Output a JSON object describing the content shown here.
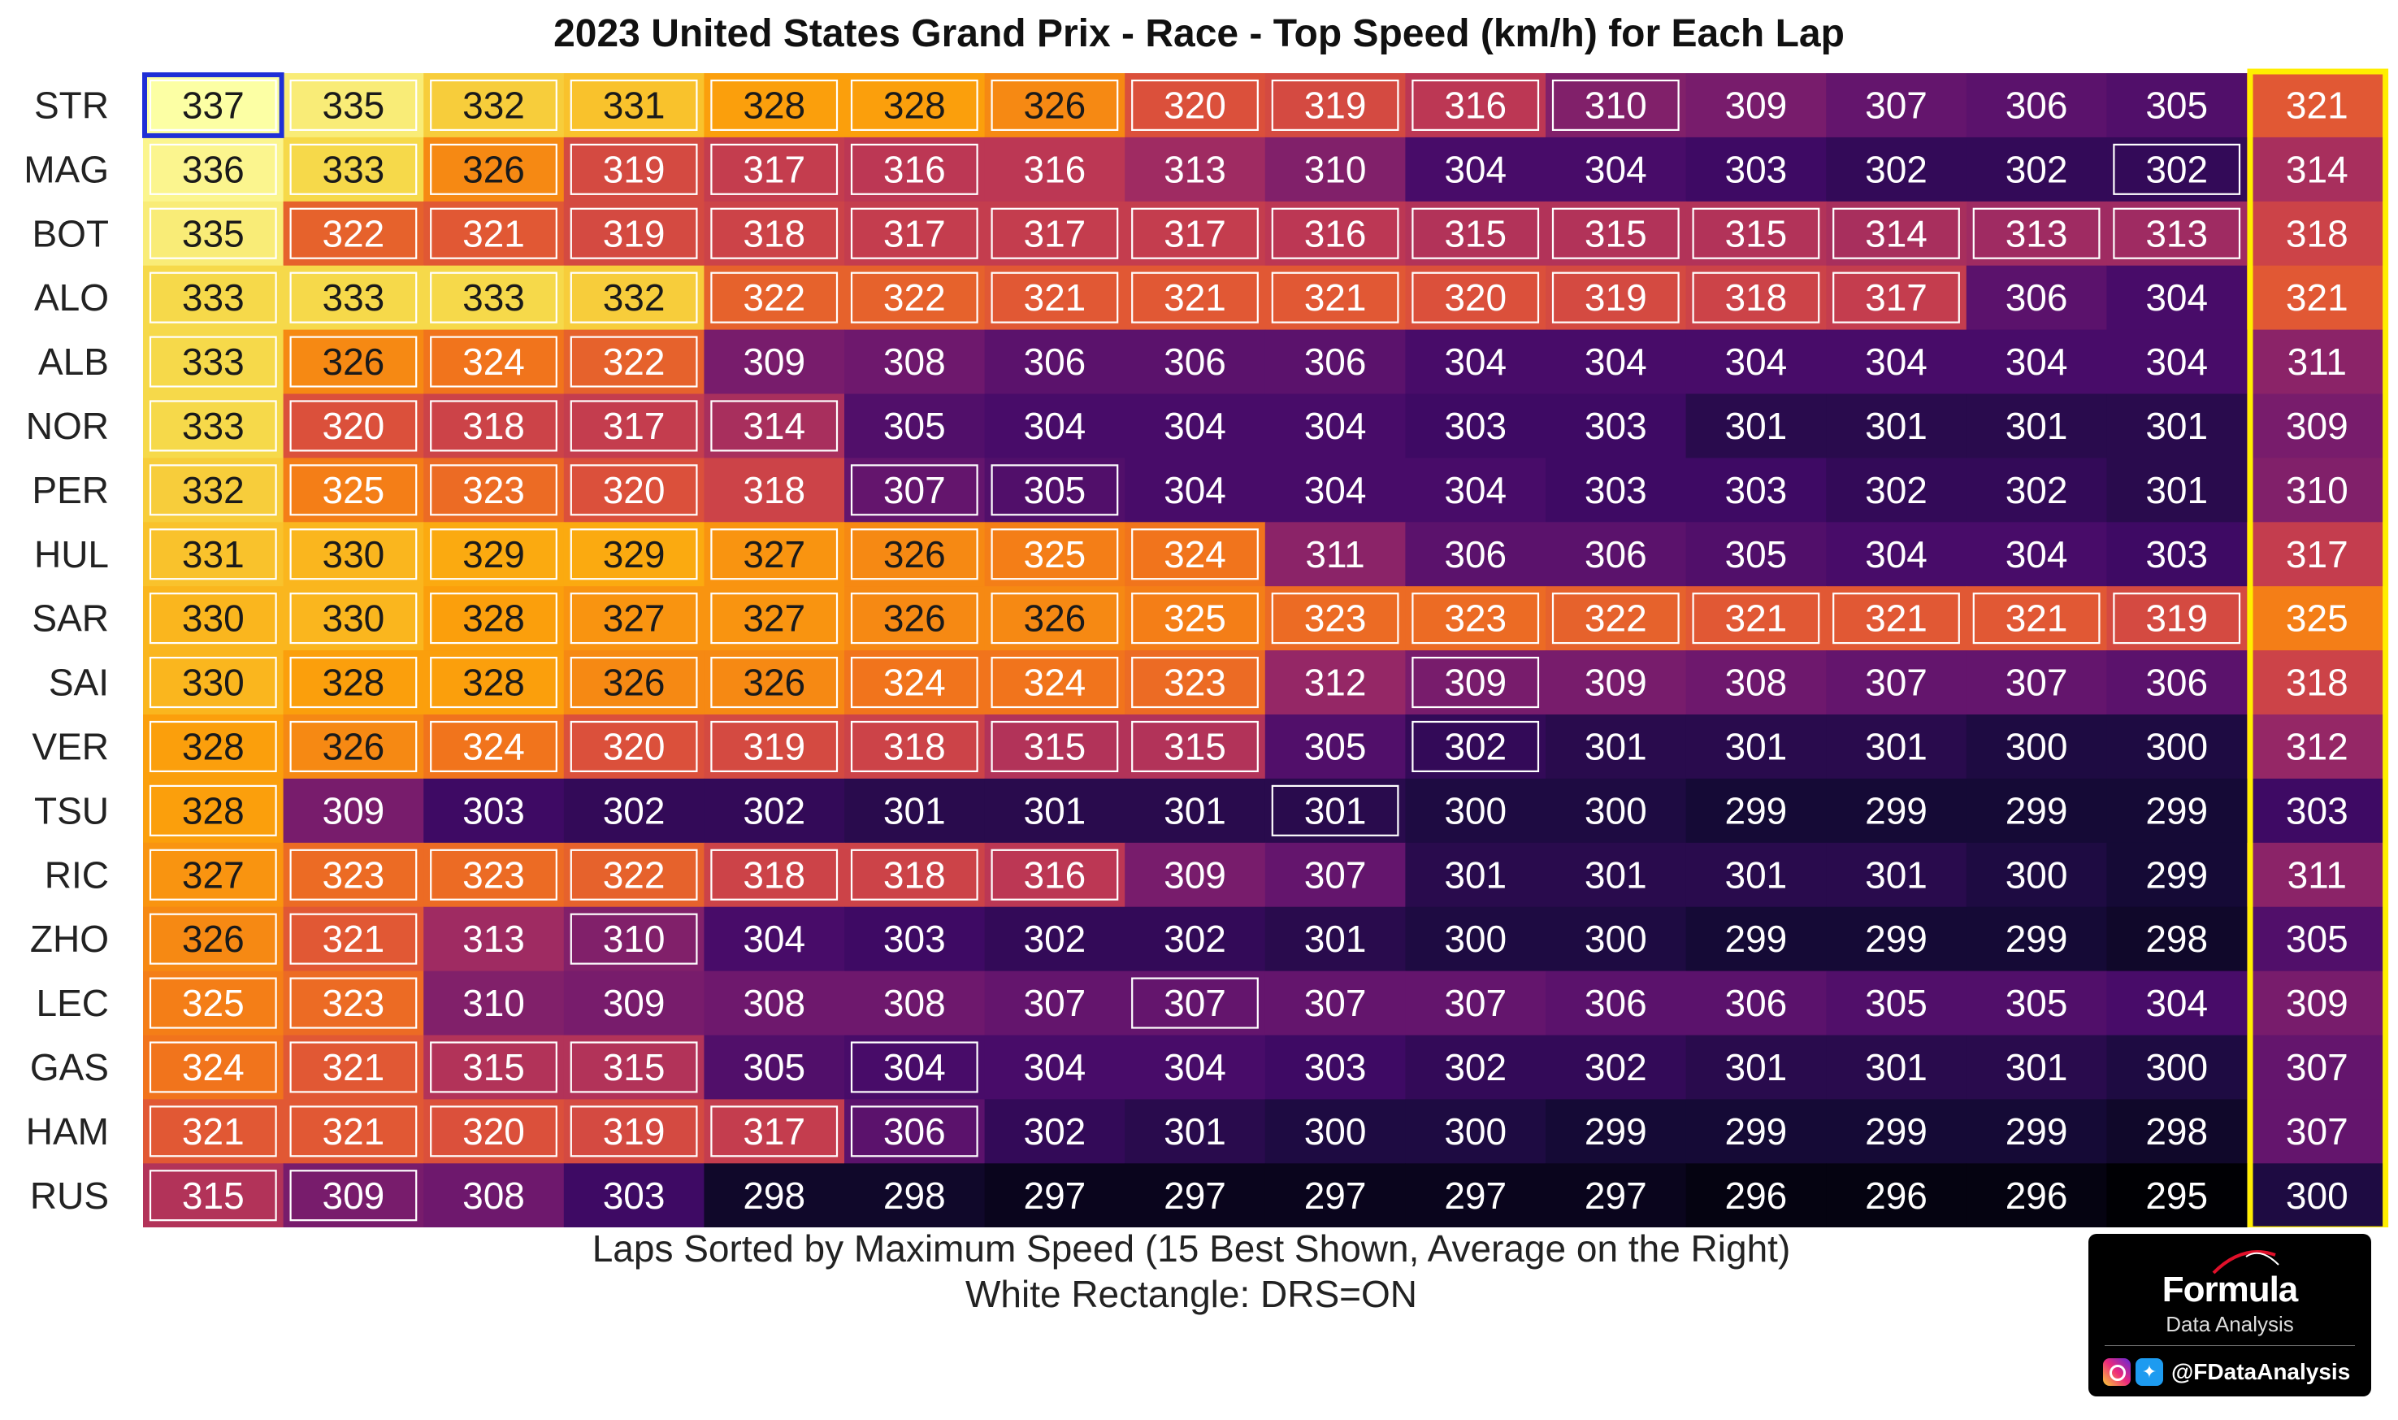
{
  "chart_data": {
    "type": "heatmap",
    "title": "2023 United States Grand Prix - Race - Top Speed (km/h) for Each Lap",
    "xlabel_lines": [
      "Laps Sorted by Maximum Speed (15 Best Shown, Average on the Right)",
      "White Rectangle: DRS=ON"
    ],
    "unit": "km/h",
    "colormap": "inferno",
    "color_range": [
      295,
      337
    ],
    "drivers": [
      "STR",
      "MAG",
      "BOT",
      "ALO",
      "ALB",
      "NOR",
      "PER",
      "HUL",
      "SAR",
      "SAI",
      "VER",
      "TSU",
      "RIC",
      "ZHO",
      "LEC",
      "GAS",
      "HAM",
      "RUS"
    ],
    "values": [
      [
        337,
        335,
        332,
        331,
        328,
        328,
        326,
        320,
        319,
        316,
        310,
        309,
        307,
        306,
        305
      ],
      [
        336,
        333,
        326,
        319,
        317,
        316,
        316,
        313,
        310,
        304,
        304,
        303,
        302,
        302,
        302
      ],
      [
        335,
        322,
        321,
        319,
        318,
        317,
        317,
        317,
        316,
        315,
        315,
        315,
        314,
        313,
        313
      ],
      [
        333,
        333,
        333,
        332,
        322,
        322,
        321,
        321,
        321,
        320,
        319,
        318,
        317,
        306,
        304
      ],
      [
        333,
        326,
        324,
        322,
        309,
        308,
        306,
        306,
        306,
        304,
        304,
        304,
        304,
        304,
        304
      ],
      [
        333,
        320,
        318,
        317,
        314,
        305,
        304,
        304,
        304,
        303,
        303,
        301,
        301,
        301,
        301
      ],
      [
        332,
        325,
        323,
        320,
        318,
        307,
        305,
        304,
        304,
        304,
        303,
        303,
        302,
        302,
        301
      ],
      [
        331,
        330,
        329,
        329,
        327,
        326,
        325,
        324,
        311,
        306,
        306,
        305,
        304,
        304,
        303
      ],
      [
        330,
        330,
        328,
        327,
        327,
        326,
        326,
        325,
        323,
        323,
        322,
        321,
        321,
        321,
        319
      ],
      [
        330,
        328,
        328,
        326,
        326,
        324,
        324,
        323,
        312,
        309,
        309,
        308,
        307,
        307,
        306
      ],
      [
        328,
        326,
        324,
        320,
        319,
        318,
        315,
        315,
        305,
        302,
        301,
        301,
        301,
        300,
        300
      ],
      [
        328,
        309,
        303,
        302,
        302,
        301,
        301,
        301,
        301,
        300,
        300,
        299,
        299,
        299,
        299
      ],
      [
        327,
        323,
        323,
        322,
        318,
        318,
        316,
        309,
        307,
        301,
        301,
        301,
        301,
        300,
        299
      ],
      [
        326,
        321,
        313,
        310,
        304,
        303,
        302,
        302,
        301,
        300,
        300,
        299,
        299,
        299,
        298
      ],
      [
        325,
        323,
        310,
        309,
        308,
        308,
        307,
        307,
        307,
        307,
        306,
        306,
        305,
        305,
        304
      ],
      [
        324,
        321,
        315,
        315,
        305,
        304,
        304,
        304,
        303,
        302,
        302,
        301,
        301,
        301,
        300
      ],
      [
        321,
        321,
        320,
        319,
        317,
        306,
        302,
        301,
        300,
        300,
        299,
        299,
        299,
        299,
        298
      ],
      [
        315,
        309,
        308,
        303,
        298,
        298,
        297,
        297,
        297,
        297,
        297,
        296,
        296,
        296,
        295
      ]
    ],
    "averages": [
      321,
      314,
      318,
      321,
      311,
      309,
      310,
      317,
      325,
      318,
      312,
      303,
      311,
      305,
      309,
      307,
      307,
      300
    ],
    "drs_on": [
      [
        1,
        1,
        1,
        1,
        1,
        1,
        1,
        1,
        1,
        1,
        1,
        0,
        0,
        0,
        0
      ],
      [
        1,
        1,
        1,
        1,
        1,
        1,
        0,
        0,
        0,
        0,
        0,
        0,
        0,
        0,
        1
      ],
      [
        1,
        1,
        1,
        1,
        1,
        1,
        1,
        1,
        1,
        1,
        1,
        1,
        1,
        1,
        1
      ],
      [
        1,
        1,
        1,
        1,
        1,
        1,
        1,
        1,
        1,
        1,
        1,
        1,
        1,
        0,
        0
      ],
      [
        1,
        1,
        1,
        1,
        0,
        0,
        0,
        0,
        0,
        0,
        0,
        0,
        0,
        0,
        0
      ],
      [
        1,
        1,
        1,
        1,
        1,
        0,
        0,
        0,
        0,
        0,
        0,
        0,
        0,
        0,
        0
      ],
      [
        1,
        1,
        1,
        1,
        0,
        1,
        1,
        0,
        0,
        0,
        0,
        0,
        0,
        0,
        0
      ],
      [
        1,
        1,
        1,
        1,
        1,
        1,
        1,
        1,
        0,
        0,
        0,
        0,
        0,
        0,
        0
      ],
      [
        1,
        1,
        1,
        1,
        1,
        1,
        1,
        1,
        1,
        1,
        1,
        1,
        1,
        1,
        1
      ],
      [
        1,
        1,
        1,
        1,
        1,
        1,
        1,
        1,
        0,
        1,
        0,
        0,
        0,
        0,
        0
      ],
      [
        1,
        1,
        1,
        1,
        1,
        1,
        1,
        1,
        0,
        1,
        0,
        0,
        0,
        0,
        0
      ],
      [
        1,
        0,
        0,
        0,
        0,
        0,
        0,
        0,
        1,
        0,
        0,
        0,
        0,
        0,
        0
      ],
      [
        1,
        1,
        1,
        1,
        1,
        1,
        1,
        0,
        0,
        0,
        0,
        0,
        0,
        0,
        0
      ],
      [
        1,
        1,
        0,
        1,
        0,
        0,
        0,
        0,
        0,
        0,
        0,
        0,
        0,
        0,
        0
      ],
      [
        1,
        1,
        0,
        0,
        0,
        0,
        0,
        1,
        0,
        0,
        0,
        0,
        0,
        0,
        0
      ],
      [
        1,
        1,
        1,
        1,
        0,
        1,
        0,
        0,
        0,
        0,
        0,
        0,
        0,
        0,
        0
      ],
      [
        1,
        1,
        1,
        1,
        1,
        1,
        0,
        0,
        0,
        0,
        0,
        0,
        0,
        0,
        0
      ],
      [
        1,
        1,
        0,
        0,
        0,
        0,
        0,
        0,
        0,
        0,
        0,
        0,
        0,
        0,
        0
      ]
    ],
    "highlight_max_cell": {
      "driver": "STR",
      "lap_rank": 1,
      "color": "#1f2fd6"
    },
    "average_column_border_color": "#ffee00"
  },
  "branding": {
    "name": "Formula",
    "sub": "Data Analysis",
    "handle": "@FDataAnalysis"
  }
}
